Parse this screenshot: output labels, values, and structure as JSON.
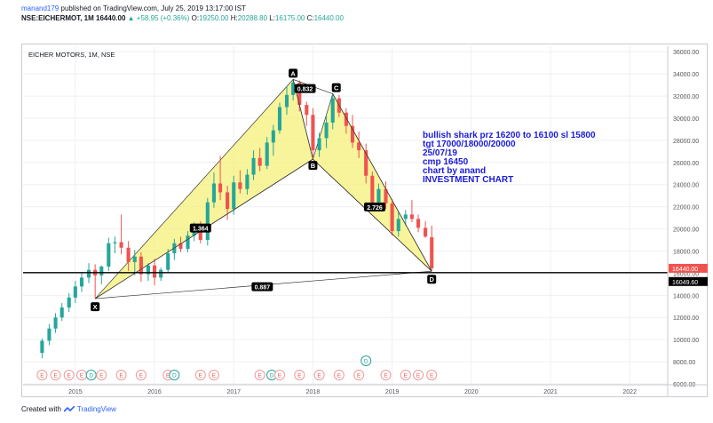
{
  "header": {
    "author": "manand179",
    "published": "published on TradingView.com, July 25, 2019 13:17:00 IST",
    "ticker": "NSE:EICHERMOT, 1M",
    "last": "16440.00",
    "change": "▲ +58.95 (+0.36%)",
    "ohlc_labels": [
      "O:",
      "H:",
      "L:",
      "C:"
    ],
    "ohlc_values": [
      "19250.00",
      "20288.80",
      "16175.00",
      "16440.00"
    ]
  },
  "footer": {
    "created_with": "Created with",
    "brand": "TradingView"
  },
  "colors": {
    "up": "#26a69a",
    "down": "#ef5350",
    "pattern_fill": "#f5f07a",
    "annotation": "#1a1adb",
    "price_tag": "#ef5350"
  },
  "chart_data": {
    "type": "candlestick",
    "symbol_label": "EICHER MOTORS, 1M, NSE",
    "x_ticks": [
      "2015",
      "2016",
      "2017",
      "2018",
      "2019",
      "2020",
      "2021",
      "2022"
    ],
    "y_ticks": [
      "36000.00",
      "34000.00",
      "32000.00",
      "30000.00",
      "28000.00",
      "26000.00",
      "24000.00",
      "22000.00",
      "20000.00",
      "18000.00",
      "16000.00",
      "14000.00",
      "12000.00",
      "10000.00",
      "8000.00",
      "6000.00"
    ],
    "ylim": [
      6000,
      36500
    ],
    "last_price_tag": "16440.00",
    "line_price_tag": "16049.60",
    "line_price": 16049.6,
    "grid": true,
    "candles": [
      {
        "t": 2014.58,
        "o": 8800,
        "h": 10100,
        "l": 8300,
        "c": 9900
      },
      {
        "t": 2014.67,
        "o": 9900,
        "h": 11400,
        "l": 9500,
        "c": 11000
      },
      {
        "t": 2014.75,
        "o": 11000,
        "h": 12400,
        "l": 10600,
        "c": 12000
      },
      {
        "t": 2014.83,
        "o": 12000,
        "h": 13300,
        "l": 11700,
        "c": 12900
      },
      {
        "t": 2014.92,
        "o": 12900,
        "h": 14200,
        "l": 12500,
        "c": 13800
      },
      {
        "t": 2015.0,
        "o": 13800,
        "h": 15300,
        "l": 13300,
        "c": 14800
      },
      {
        "t": 2015.08,
        "o": 14800,
        "h": 16000,
        "l": 14300,
        "c": 15600
      },
      {
        "t": 2015.17,
        "o": 15600,
        "h": 16900,
        "l": 15100,
        "c": 16300
      },
      {
        "t": 2015.25,
        "o": 16300,
        "h": 16800,
        "l": 13700,
        "c": 15800
      },
      {
        "t": 2015.33,
        "o": 15800,
        "h": 16700,
        "l": 15000,
        "c": 16600
      },
      {
        "t": 2015.42,
        "o": 16600,
        "h": 19200,
        "l": 16200,
        "c": 18700
      },
      {
        "t": 2015.5,
        "o": 18700,
        "h": 19300,
        "l": 17800,
        "c": 18800
      },
      {
        "t": 2015.58,
        "o": 18800,
        "h": 21300,
        "l": 17700,
        "c": 18300
      },
      {
        "t": 2015.67,
        "o": 18300,
        "h": 18900,
        "l": 16200,
        "c": 17000
      },
      {
        "t": 2015.75,
        "o": 17000,
        "h": 18100,
        "l": 15800,
        "c": 17500
      },
      {
        "t": 2015.83,
        "o": 17500,
        "h": 17900,
        "l": 15200,
        "c": 15900
      },
      {
        "t": 2015.92,
        "o": 15900,
        "h": 16900,
        "l": 15300,
        "c": 16700
      },
      {
        "t": 2016.0,
        "o": 16700,
        "h": 17300,
        "l": 14900,
        "c": 15600
      },
      {
        "t": 2016.08,
        "o": 15600,
        "h": 16500,
        "l": 15300,
        "c": 16300
      },
      {
        "t": 2016.17,
        "o": 16300,
        "h": 18200,
        "l": 16100,
        "c": 17800
      },
      {
        "t": 2016.25,
        "o": 17800,
        "h": 19100,
        "l": 17200,
        "c": 18700
      },
      {
        "t": 2016.33,
        "o": 18700,
        "h": 19300,
        "l": 17900,
        "c": 18200
      },
      {
        "t": 2016.42,
        "o": 18200,
        "h": 19800,
        "l": 17900,
        "c": 19400
      },
      {
        "t": 2016.5,
        "o": 19400,
        "h": 20600,
        "l": 18900,
        "c": 19800
      },
      {
        "t": 2016.58,
        "o": 19800,
        "h": 20700,
        "l": 18700,
        "c": 19000
      },
      {
        "t": 2016.67,
        "o": 19000,
        "h": 22800,
        "l": 18500,
        "c": 22400
      },
      {
        "t": 2016.75,
        "o": 22400,
        "h": 25100,
        "l": 21900,
        "c": 24100
      },
      {
        "t": 2016.83,
        "o": 24100,
        "h": 26600,
        "l": 22600,
        "c": 23300
      },
      {
        "t": 2016.92,
        "o": 23300,
        "h": 23900,
        "l": 20800,
        "c": 21800
      },
      {
        "t": 2017.0,
        "o": 21800,
        "h": 24800,
        "l": 21300,
        "c": 24200
      },
      {
        "t": 2017.08,
        "o": 24200,
        "h": 25300,
        "l": 23200,
        "c": 23600
      },
      {
        "t": 2017.17,
        "o": 23600,
        "h": 25400,
        "l": 23100,
        "c": 24900
      },
      {
        "t": 2017.25,
        "o": 24900,
        "h": 27100,
        "l": 24400,
        "c": 26400
      },
      {
        "t": 2017.33,
        "o": 26400,
        "h": 27300,
        "l": 25200,
        "c": 25700
      },
      {
        "t": 2017.42,
        "o": 25700,
        "h": 28300,
        "l": 25400,
        "c": 27800
      },
      {
        "t": 2017.5,
        "o": 27800,
        "h": 29400,
        "l": 26600,
        "c": 28900
      },
      {
        "t": 2017.58,
        "o": 28900,
        "h": 31400,
        "l": 28600,
        "c": 31000
      },
      {
        "t": 2017.67,
        "o": 31000,
        "h": 32900,
        "l": 30300,
        "c": 32100
      },
      {
        "t": 2017.75,
        "o": 32100,
        "h": 33500,
        "l": 31600,
        "c": 33200
      },
      {
        "t": 2017.83,
        "o": 33200,
        "h": 33400,
        "l": 30600,
        "c": 31200
      },
      {
        "t": 2017.92,
        "o": 31200,
        "h": 31500,
        "l": 29300,
        "c": 30300
      },
      {
        "t": 2018.0,
        "o": 30300,
        "h": 30900,
        "l": 26300,
        "c": 27100
      },
      {
        "t": 2018.08,
        "o": 27100,
        "h": 28700,
        "l": 26500,
        "c": 28200
      },
      {
        "t": 2018.17,
        "o": 28200,
        "h": 30400,
        "l": 27300,
        "c": 29600
      },
      {
        "t": 2018.25,
        "o": 29600,
        "h": 32200,
        "l": 29000,
        "c": 31800
      },
      {
        "t": 2018.33,
        "o": 31800,
        "h": 32100,
        "l": 30100,
        "c": 30500
      },
      {
        "t": 2018.42,
        "o": 30500,
        "h": 30900,
        "l": 28600,
        "c": 29300
      },
      {
        "t": 2018.5,
        "o": 29300,
        "h": 30300,
        "l": 27300,
        "c": 27800
      },
      {
        "t": 2018.58,
        "o": 27800,
        "h": 28800,
        "l": 26400,
        "c": 27100
      },
      {
        "t": 2018.67,
        "o": 27100,
        "h": 27700,
        "l": 24100,
        "c": 24800
      },
      {
        "t": 2018.75,
        "o": 24800,
        "h": 25200,
        "l": 21600,
        "c": 22400
      },
      {
        "t": 2018.83,
        "o": 22400,
        "h": 24100,
        "l": 21900,
        "c": 23600
      },
      {
        "t": 2018.92,
        "o": 23600,
        "h": 24300,
        "l": 21800,
        "c": 22300
      },
      {
        "t": 2019.0,
        "o": 22300,
        "h": 22700,
        "l": 19400,
        "c": 19800
      },
      {
        "t": 2019.08,
        "o": 19800,
        "h": 21500,
        "l": 19300,
        "c": 20900
      },
      {
        "t": 2019.17,
        "o": 20900,
        "h": 21700,
        "l": 20300,
        "c": 21300
      },
      {
        "t": 2019.25,
        "o": 21300,
        "h": 22600,
        "l": 20600,
        "c": 20900
      },
      {
        "t": 2019.33,
        "o": 20900,
        "h": 21300,
        "l": 19700,
        "c": 20100
      },
      {
        "t": 2019.42,
        "o": 20100,
        "h": 20700,
        "l": 19200,
        "c": 19300
      },
      {
        "t": 2019.5,
        "o": 19250,
        "h": 20288.8,
        "l": 16175,
        "c": 16440
      }
    ],
    "pattern": {
      "points": [
        {
          "label": "X",
          "t": 2015.25,
          "p": 13700
        },
        {
          "label": "A",
          "t": 2017.75,
          "p": 33500
        },
        {
          "label": "B",
          "t": 2018.0,
          "p": 26300
        },
        {
          "label": "C",
          "t": 2018.25,
          "p": 32200
        },
        {
          "label": "D",
          "t": 2019.5,
          "p": 16175
        }
      ],
      "ratios": [
        {
          "value": "0.832",
          "t": 2017.9,
          "p": 32600
        },
        {
          "value": "1.364",
          "t": 2016.58,
          "p": 20000
        },
        {
          "value": "2.726",
          "t": 2018.78,
          "p": 21900
        },
        {
          "value": "0.887",
          "t": 2017.36,
          "p": 14700
        }
      ]
    },
    "annotation": [
      "bullish shark prz 16200 to 16100 sl 15800",
      "tgt 17000/18000/20000",
      "25/07/19",
      "cmp 16450",
      "chart by anand",
      "INVESTMENT CHART"
    ],
    "events": [
      {
        "t": 2014.58,
        "type": "E"
      },
      {
        "t": 2014.75,
        "type": "E"
      },
      {
        "t": 2014.92,
        "type": "E"
      },
      {
        "t": 2015.08,
        "type": "E"
      },
      {
        "t": 2015.2,
        "type": "D"
      },
      {
        "t": 2015.33,
        "type": "E"
      },
      {
        "t": 2015.58,
        "type": "E"
      },
      {
        "t": 2015.83,
        "type": "E"
      },
      {
        "t": 2016.17,
        "type": "E"
      },
      {
        "t": 2016.25,
        "type": "D"
      },
      {
        "t": 2016.58,
        "type": "E"
      },
      {
        "t": 2016.75,
        "type": "E"
      },
      {
        "t": 2017.33,
        "type": "E"
      },
      {
        "t": 2017.48,
        "type": "D"
      },
      {
        "t": 2017.58,
        "type": "E"
      },
      {
        "t": 2017.83,
        "type": "E"
      },
      {
        "t": 2018.08,
        "type": "E"
      },
      {
        "t": 2018.33,
        "type": "E"
      },
      {
        "t": 2018.67,
        "type": "D"
      },
      {
        "t": 2018.58,
        "type": "E"
      },
      {
        "t": 2018.92,
        "type": "E"
      },
      {
        "t": 2019.17,
        "type": "E"
      },
      {
        "t": 2019.33,
        "type": "E"
      },
      {
        "t": 2019.5,
        "type": "E"
      }
    ]
  }
}
